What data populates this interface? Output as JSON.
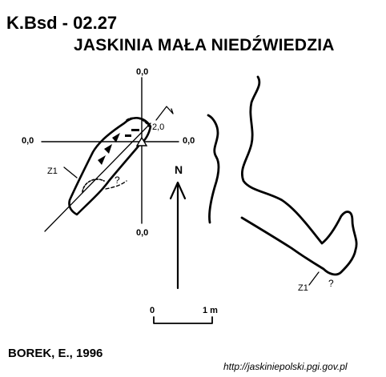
{
  "header": {
    "code": "K.Bsd - 02.27",
    "name": "JASKINIA MAŁA NIEDŹWIEDZIA"
  },
  "section": {
    "top_value": "0,0",
    "bottom_value": "0,0",
    "left_value": "0,0",
    "right_value": "0,0",
    "height_label": "2,0"
  },
  "labels": {
    "entrance_left": "Z1",
    "entrance_right": "Z1",
    "unknown_left": "?",
    "unknown_right": "?",
    "north": "N"
  },
  "scale": {
    "start": "0",
    "end": "1 m"
  },
  "footer": {
    "author": "BOREK, E., 1996",
    "source": "http://jaskiniepolski.pgi.gov.pl"
  },
  "colors": {
    "ink": "#000000",
    "paper": "#ffffff"
  }
}
